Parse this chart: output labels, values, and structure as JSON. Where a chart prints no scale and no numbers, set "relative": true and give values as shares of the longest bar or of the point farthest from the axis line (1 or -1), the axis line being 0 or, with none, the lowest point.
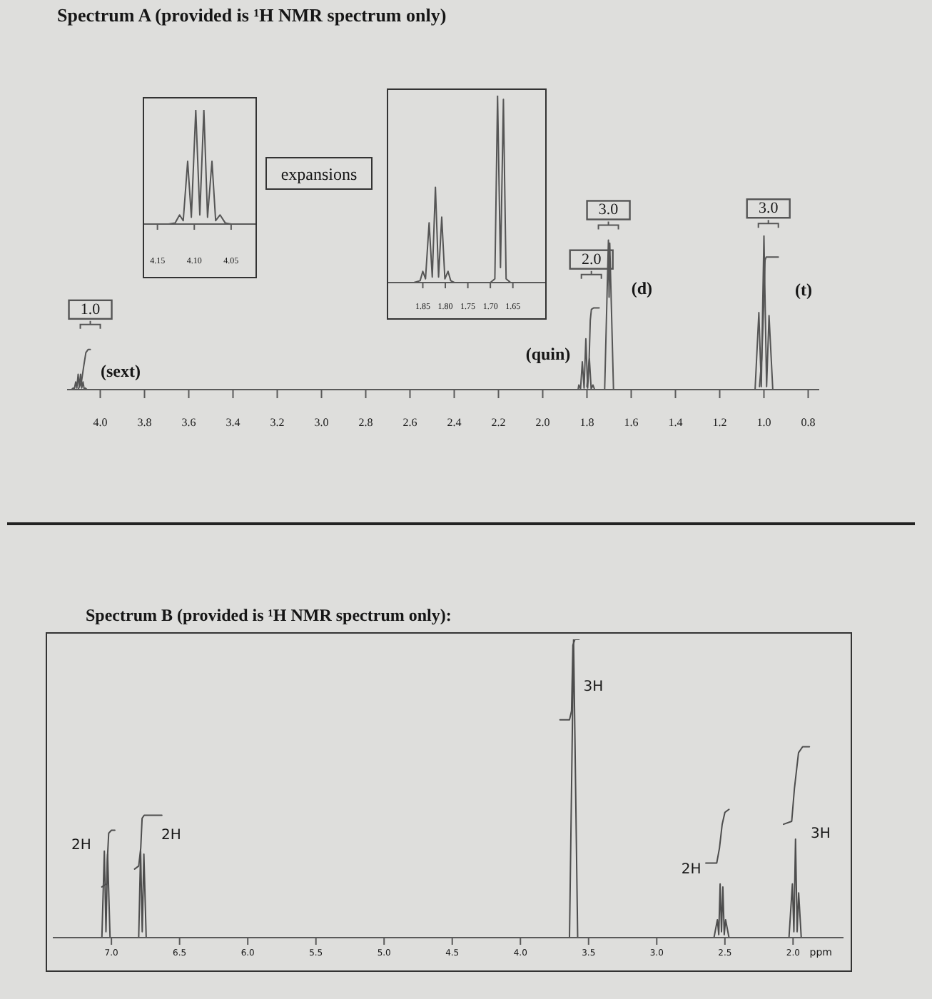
{
  "chart_data": [
    {
      "type": "line",
      "title": "Spectrum A (provided is ¹H NMR spectrum only)",
      "relative": true,
      "xlim": [
        4.17,
        4.015
      ],
      "xticks": [
        4.15,
        {
          "value": 4.1,
          "label": "4.10"
        },
        4.05
      ],
      "series": [
        {
          "color": "#555555",
          "x": [
            4.17,
            4.135,
            4.126,
            4.12,
            4.115,
            4.109,
            4.104,
            4.098,
            4.0925,
            4.087,
            4.082,
            4.076,
            4.071,
            4.065,
            4.058,
            4.05,
            4.015
          ],
          "values": [
            0,
            0,
            0.01,
            0.08,
            0.03,
            0.55,
            0.06,
            1,
            0.08,
            1,
            0.06,
            0.55,
            0.03,
            0.08,
            0.01,
            0,
            0
          ]
        }
      ]
    },
    {
      "type": "line",
      "relative": true,
      "xlim": [
        1.93,
        1.575
      ],
      "xticks": [
        1.85,
        {
          "value": 1.8,
          "label": "1.80"
        },
        1.75,
        {
          "value": 1.7,
          "label": "1.70"
        },
        1.65
      ],
      "series": [
        {
          "color": "#555555",
          "x": [
            1.93,
            1.87,
            1.856,
            1.85,
            1.844,
            1.836,
            1.829,
            1.822,
            1.815,
            1.808,
            1.801,
            1.794,
            1.788,
            1.78,
            1.7,
            1.69,
            1.684,
            1.6775,
            1.671,
            1.665,
            1.655,
            1.575
          ],
          "values": [
            0,
            0,
            0.01,
            0.06,
            0.02,
            0.32,
            0.03,
            0.51,
            0.03,
            0.35,
            0.02,
            0.06,
            0.01,
            0,
            0,
            0.02,
            1,
            0.08,
            0.98,
            0.02,
            0,
            0
          ]
        }
      ]
    },
    {
      "type": "line",
      "relative": true,
      "xlim": [
        4.15,
        0.75
      ],
      "xticks": [
        {
          "value": 4,
          "label": "4.0"
        },
        3.8,
        3.6,
        3.4,
        3.2,
        {
          "value": 3,
          "label": "3.0"
        },
        2.8,
        2.6,
        2.4,
        2.2,
        {
          "value": 2,
          "label": "2.0"
        },
        1.8,
        1.6,
        1.4,
        1.2,
        {
          "value": 1,
          "label": "1.0"
        },
        0.8
      ],
      "series": [
        {
          "color": "#555555",
          "x": [
            4.15,
            4.13,
            4.122,
            4.117,
            4.111,
            4.106,
            4.1,
            4.095,
            4.089,
            4.084,
            4.078,
            4.073,
            4.067,
            4.06,
            1.84,
            1.837,
            1.829,
            1.821,
            1.813,
            1.805,
            1.797,
            1.789,
            1.781,
            1.773,
            1.765,
            1.72,
            1.703,
            1.7,
            1.697,
            1.68,
            1.04,
            1.023,
            1.012,
            1.0,
            0.988,
            0.977,
            0.96,
            0.75
          ],
          "values": [
            0,
            0,
            0.01,
            0.005,
            0.05,
            0.01,
            0.1,
            0.02,
            0.1,
            0.01,
            0.05,
            0.005,
            0.01,
            0,
            0,
            0.03,
            0.005,
            0.18,
            0.01,
            0.33,
            0.01,
            0.2,
            0.005,
            0.03,
            0,
            0,
            0.97,
            0.6,
            0.95,
            0,
            0,
            0.5,
            0.02,
            1,
            0.02,
            0.48,
            0,
            0
          ]
        },
        {
          "color": "#555555",
          "x": [
            4.1,
            4.085,
            4.075,
            4.065,
            4.055,
            4.045,
            3.0,
            1.8,
            1.79,
            1.785,
            1.78,
            1.77,
            1.745,
            1.3,
            1.02,
            1.01,
            1.0,
            0.995,
            0.99,
            0.98,
            0.935
          ],
          "values": [
            0,
            0.05,
            0.15,
            0.24,
            0.26,
            0.26,
            null,
            0.02,
            0.2,
            0.45,
            0.52,
            0.53,
            0.53,
            null,
            0.02,
            0.2,
            0.6,
            0.84,
            0.86,
            0.86,
            0.86
          ]
        }
      ],
      "annotations": [
        "expansions",
        "(sext)",
        "(quin)",
        "(d)",
        "(t)",
        {
          "text": "1.0",
          "x": 4.045,
          "y": 0.26
        },
        {
          "text": "2.0",
          "x": 1.78,
          "y": 0.52
        },
        {
          "text": "3.0",
          "x": 1.703,
          "y": 0.97
        },
        {
          "text": "3.0",
          "x": 0.98,
          "y": 0.86
        }
      ]
    },
    {
      "type": "line",
      "title": "Spectrum B (provided is ¹H NMR spectrum only):",
      "xlabel": "ppm",
      "relative": true,
      "xlim": [
        7.43,
        1.63
      ],
      "xticks": [
        {
          "value": 7,
          "label": "7.0"
        },
        6.5,
        {
          "value": 6,
          "label": "6.0"
        },
        5.5,
        {
          "value": 5,
          "label": "5.0"
        },
        4.5,
        {
          "value": 4,
          "label": "4.0"
        },
        3.5,
        {
          "value": 3,
          "label": "3.0"
        },
        2.5,
        {
          "value": 2,
          "label": "2.0"
        }
      ],
      "series": [
        {
          "color": "#4d4d4d",
          "x": [
            7.43,
            7.07,
            7.052,
            7.04,
            7.028,
            7.01,
            6.8,
            6.786,
            6.774,
            6.762,
            6.745,
            3.64,
            3.61,
            3.58,
            2.58,
            2.555,
            2.545,
            2.535,
            2.525,
            2.515,
            2.505,
            2.495,
            2.47,
            2.03,
            2.005,
            1.994,
            1.982,
            1.97,
            1.959,
            1.94,
            1.63
          ],
          "values": [
            0,
            0,
            0.29,
            0.02,
            0.28,
            0,
            0,
            0.29,
            0.02,
            0.28,
            0,
            0,
            1,
            0,
            0,
            0.06,
            0.01,
            0.18,
            0.02,
            0.17,
            0.01,
            0.06,
            0,
            0,
            0.18,
            0.02,
            0.33,
            0.02,
            0.15,
            0,
            0
          ]
        },
        {
          "color": "#4d4d4d",
          "x": [
            7.07,
            7.035,
            7.03,
            7.02,
            7.0,
            6.975,
            6.9,
            6.83,
            6.8,
            6.785,
            6.775,
            6.76,
            6.63,
            5.0,
            3.71,
            3.64,
            3.625,
            3.615,
            3.6,
            3.57,
            3.0,
            2.64,
            2.56,
            2.54,
            2.52,
            2.5,
            2.47,
            2.3,
            2.07,
            2.01,
            1.99,
            1.96,
            1.93,
            1.88
          ],
          "values": [
            0.17,
            0.18,
            0.26,
            0.35,
            0.36,
            0.36,
            null,
            0.23,
            0.24,
            0.3,
            0.4,
            0.41,
            0.41,
            null,
            0.73,
            0.73,
            0.76,
            0.98,
            1,
            1,
            null,
            0.25,
            0.25,
            0.3,
            0.38,
            0.42,
            0.43,
            null,
            0.38,
            0.39,
            0.5,
            0.62,
            0.64,
            0.64
          ]
        }
      ],
      "annotations": [
        "2H",
        "2H",
        "3H",
        "2H",
        "3H"
      ]
    }
  ]
}
